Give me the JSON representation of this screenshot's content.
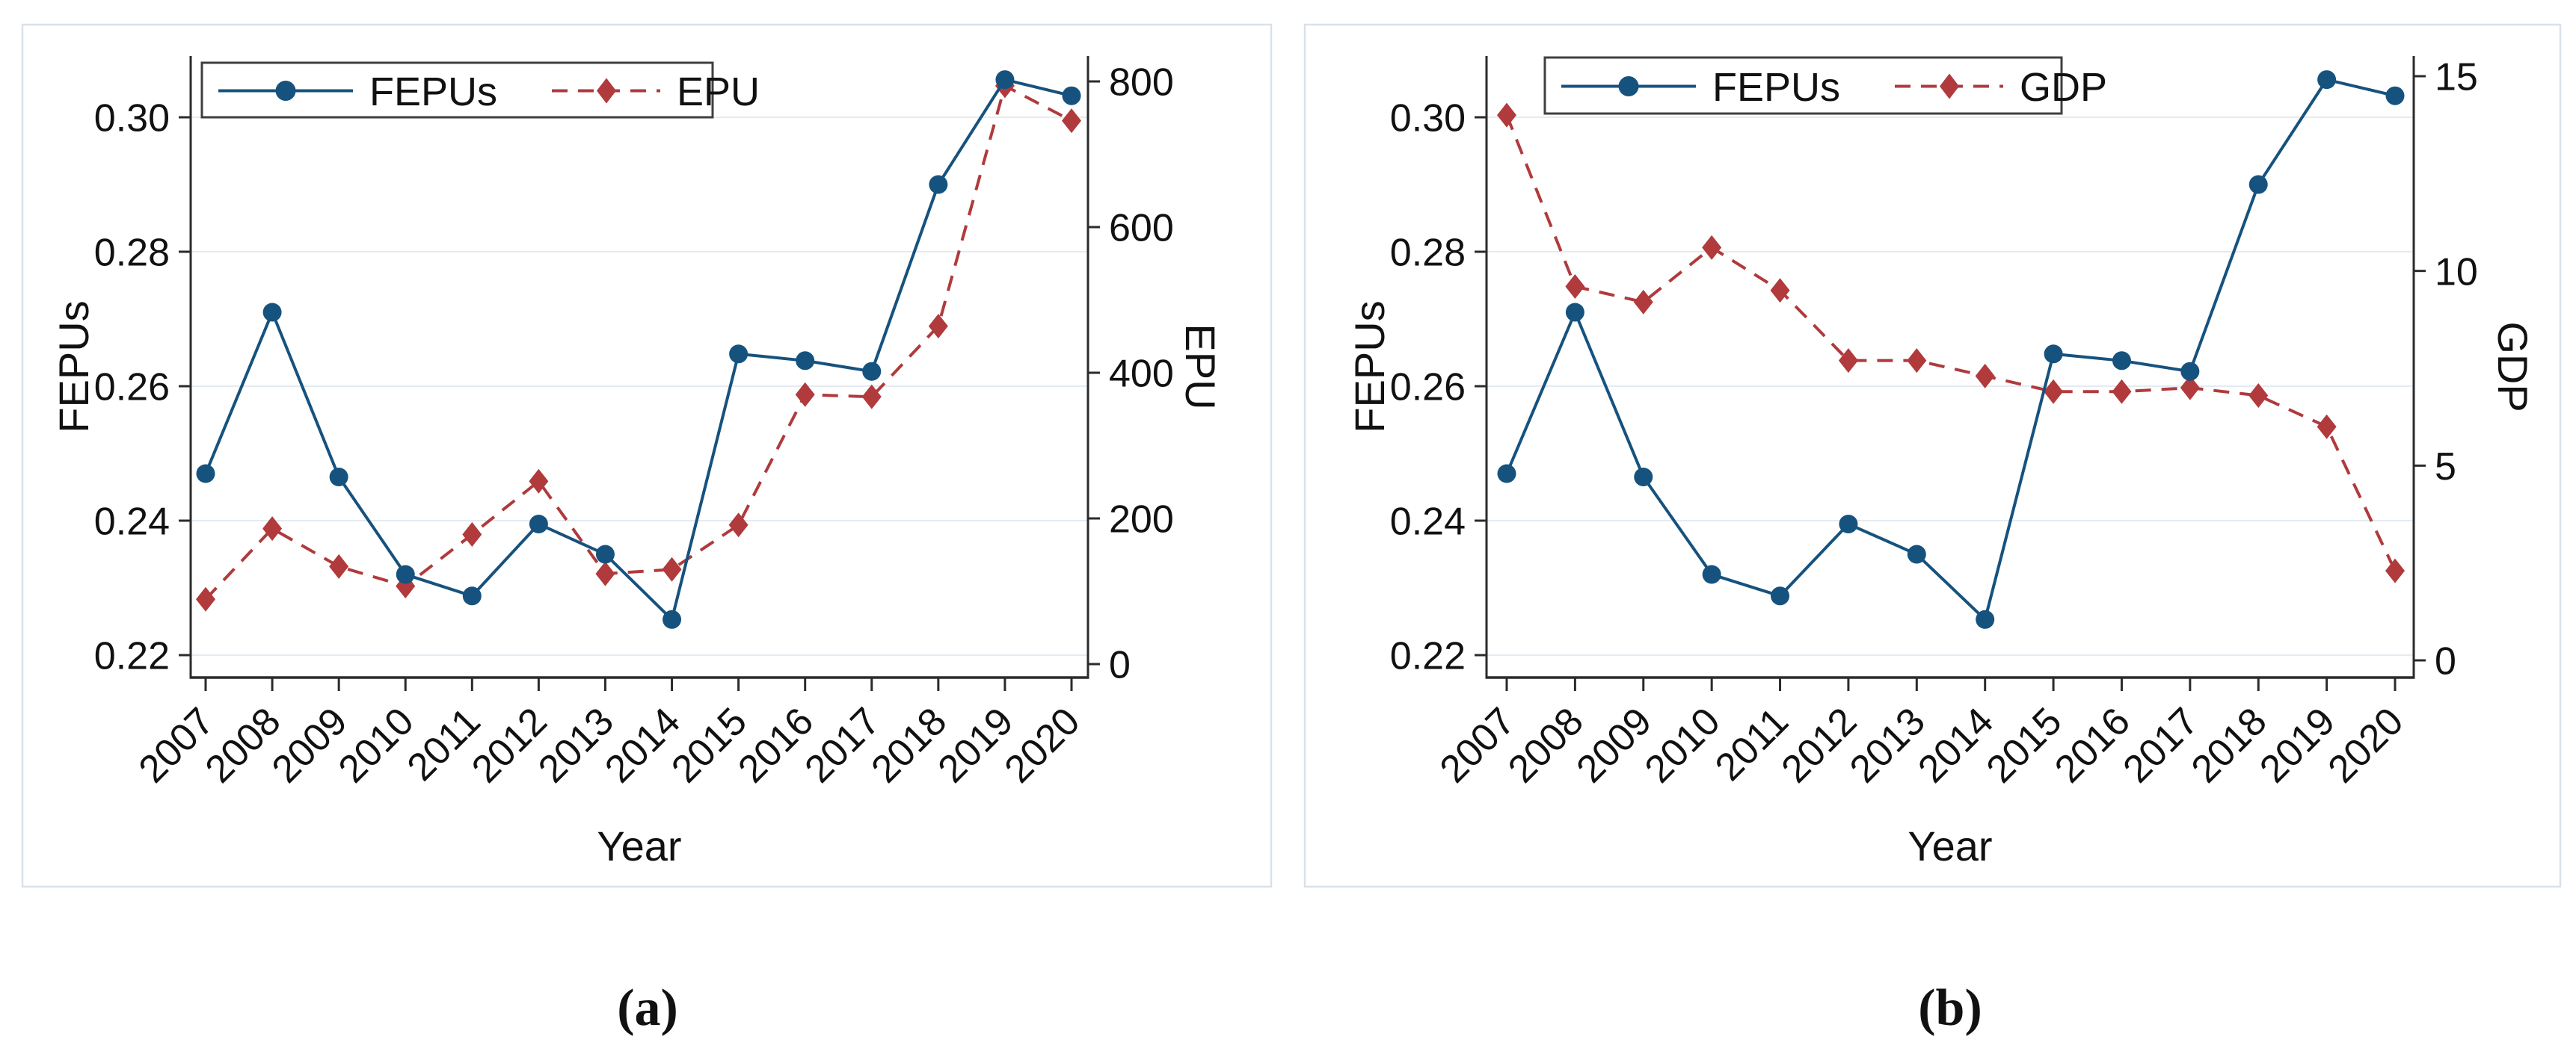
{
  "figure": {
    "description": "Two-panel line chart figure comparing FEPUs with EPU and GDP over time",
    "background": "#ffffff"
  },
  "captions": {
    "a": "(a)",
    "b": "(b)"
  },
  "colors": {
    "blue": "#16527e",
    "red": "#b03a3c",
    "grid": "#e4ebf2",
    "axis": "#2b2b2b",
    "panel_border": "#d8e2ec",
    "legend_border": "#3f3f3f",
    "text": "#111111",
    "background": "#ffffff"
  },
  "chart_data": [
    {
      "id": "a",
      "type": "line",
      "title": "",
      "xlabel": "Year",
      "ylabel_left": "FEPUs",
      "ylabel_right": "EPU",
      "x_years": [
        2007,
        2008,
        2009,
        2010,
        2011,
        2012,
        2013,
        2014,
        2015,
        2016,
        2017,
        2018,
        2019,
        2020
      ],
      "x_tick_labels": [
        "2007",
        "2008",
        "2009",
        "2010",
        "2011",
        "2012",
        "2013",
        "2014",
        "2015",
        "2016",
        "2017",
        "2018",
        "2019",
        "2020"
      ],
      "left_axis": {
        "ticks": [
          0.22,
          0.24,
          0.26,
          0.28,
          0.3
        ],
        "tick_labels": [
          "0.22",
          "0.24",
          "0.26",
          "0.28",
          "0.30"
        ]
      },
      "right_axis": {
        "ticks": [
          0,
          200,
          400,
          600,
          800
        ],
        "tick_labels": [
          "0",
          "200",
          "400",
          "600",
          "800"
        ]
      },
      "grid": "horizontal (left-axis ticks)",
      "legend_position": "top-left",
      "series": [
        {
          "name": "FEPUs",
          "axis": "left",
          "style": "solid",
          "marker": "circle",
          "color_key": "blue",
          "values": [
            0.247,
            0.271,
            0.2465,
            0.232,
            0.2288,
            0.2395,
            0.235,
            0.2253,
            0.2648,
            0.2638,
            0.2622,
            0.29,
            0.3056,
            0.3032
          ]
        },
        {
          "name": "EPU",
          "axis": "right",
          "style": "dashed",
          "marker": "diamond",
          "color_key": "red",
          "values": [
            89,
            186,
            134,
            107,
            178,
            251,
            124,
            130,
            191,
            370,
            367,
            464,
            794,
            746
          ]
        }
      ]
    },
    {
      "id": "b",
      "type": "line",
      "title": "",
      "xlabel": "Year",
      "ylabel_left": "FEPUs",
      "ylabel_right": "GDP",
      "x_years": [
        2007,
        2008,
        2009,
        2010,
        2011,
        2012,
        2013,
        2014,
        2015,
        2016,
        2017,
        2018,
        2019,
        2020
      ],
      "x_tick_labels": [
        "2007",
        "2008",
        "2009",
        "2010",
        "2011",
        "2012",
        "2013",
        "2014",
        "2015",
        "2016",
        "2017",
        "2018",
        "2019",
        "2020"
      ],
      "left_axis": {
        "ticks": [
          0.22,
          0.24,
          0.26,
          0.28,
          0.3
        ],
        "tick_labels": [
          "0.22",
          "0.24",
          "0.26",
          "0.28",
          "0.30"
        ]
      },
      "right_axis": {
        "ticks": [
          0,
          5,
          10,
          15
        ],
        "tick_labels": [
          "0",
          "5",
          "10",
          "15"
        ]
      },
      "grid": "horizontal (left-axis ticks)",
      "legend_position": "top-left",
      "series": [
        {
          "name": "FEPUs",
          "axis": "left",
          "style": "solid",
          "marker": "circle",
          "color_key": "blue",
          "values": [
            0.247,
            0.271,
            0.2465,
            0.232,
            0.2288,
            0.2395,
            0.235,
            0.2253,
            0.2648,
            0.2638,
            0.2622,
            0.29,
            0.3056,
            0.3032
          ]
        },
        {
          "name": "GDP",
          "axis": "right",
          "style": "dashed",
          "marker": "diamond",
          "color_key": "red",
          "values": [
            14.0,
            9.6,
            9.2,
            10.6,
            9.5,
            7.7,
            7.7,
            7.3,
            6.9,
            6.9,
            7.0,
            6.8,
            6.0,
            2.3
          ]
        }
      ]
    }
  ]
}
